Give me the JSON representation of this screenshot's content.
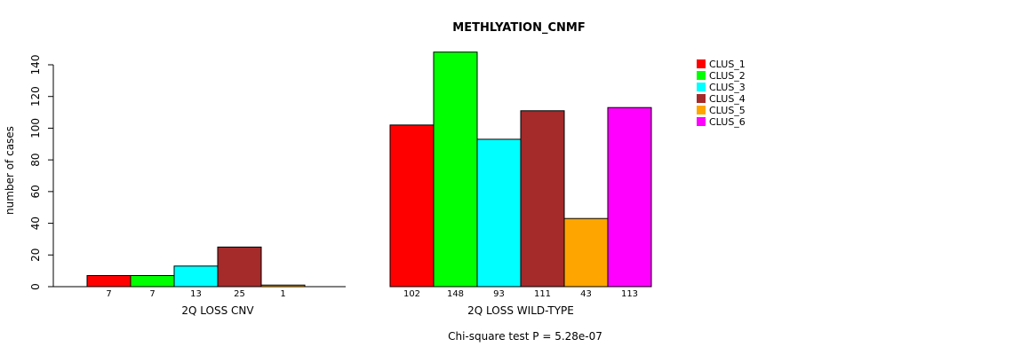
{
  "chart_data": {
    "type": "bar",
    "title": "METHLYATION_CNMF",
    "ylabel": "number of cases",
    "ylim": [
      0,
      140
    ],
    "yticks": [
      0,
      20,
      40,
      60,
      80,
      100,
      120,
      140
    ],
    "footnote": "Chi-square test P = 5.28e-07",
    "legend": {
      "placement": "top-right",
      "entries": [
        {
          "name": "CLUS_1",
          "color": "#ff0000"
        },
        {
          "name": "CLUS_2",
          "color": "#00ff00"
        },
        {
          "name": "CLUS_3",
          "color": "#00ffff"
        },
        {
          "name": "CLUS_4",
          "color": "#a52a2a"
        },
        {
          "name": "CLUS_5",
          "color": "#ffa500"
        },
        {
          "name": "CLUS_6",
          "color": "#ff00ff"
        }
      ]
    },
    "groups": [
      {
        "name": "2Q LOSS CNV",
        "bars": [
          {
            "cluster": "CLUS_1",
            "value": 7,
            "label": "7"
          },
          {
            "cluster": "CLUS_2",
            "value": 7,
            "label": "7"
          },
          {
            "cluster": "CLUS_3",
            "value": 13,
            "label": "13"
          },
          {
            "cluster": "CLUS_4",
            "value": 25,
            "label": "25"
          },
          {
            "cluster": "CLUS_5",
            "value": 1,
            "label": "1"
          },
          {
            "cluster": "CLUS_6",
            "value": 0,
            "label": ""
          }
        ]
      },
      {
        "name": "2Q LOSS WILD-TYPE",
        "bars": [
          {
            "cluster": "CLUS_1",
            "value": 102,
            "label": "102"
          },
          {
            "cluster": "CLUS_2",
            "value": 148,
            "label": "148"
          },
          {
            "cluster": "CLUS_3",
            "value": 93,
            "label": "93"
          },
          {
            "cluster": "CLUS_4",
            "value": 111,
            "label": "111"
          },
          {
            "cluster": "CLUS_5",
            "value": 43,
            "label": "43"
          },
          {
            "cluster": "CLUS_6",
            "value": 113,
            "label": "113"
          }
        ]
      }
    ]
  }
}
